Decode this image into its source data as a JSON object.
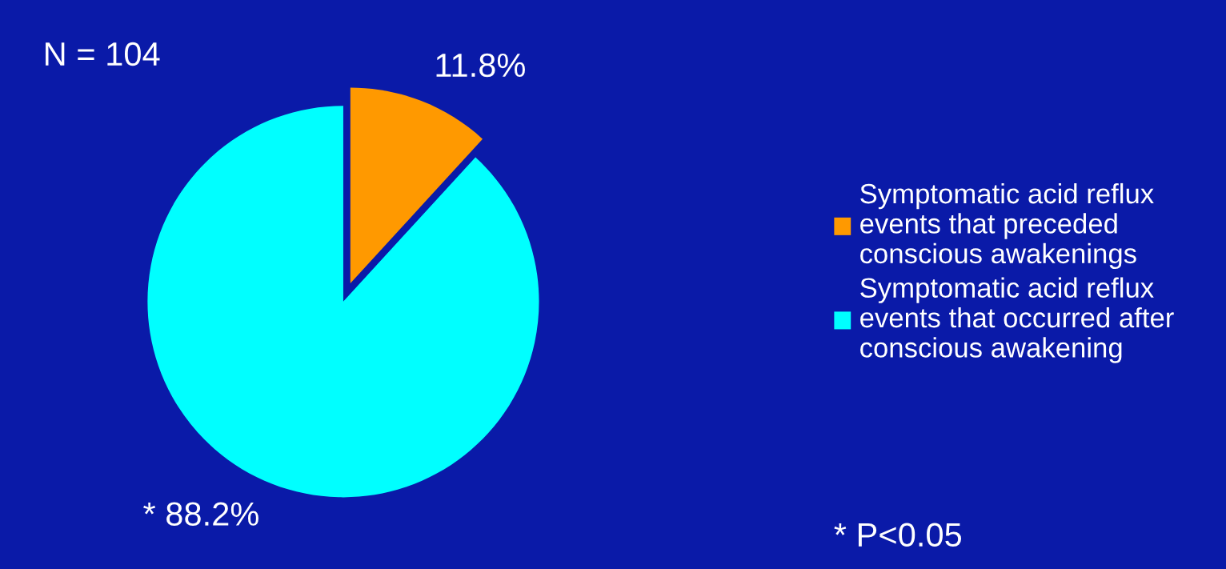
{
  "chart_data": {
    "type": "pie",
    "categories": [
      "Symptomatic acid reflux\nevents that preceded\nconscious awakenings",
      "Symptomatic acid reflux\nevents that occurred after\nconscious awakening"
    ],
    "values": [
      11.8,
      88.2
    ],
    "colors": [
      "#ff9900",
      "#00ffff"
    ],
    "value_labels": [
      "11.8%",
      "* 88.2%"
    ],
    "annotations": [
      "N = 104",
      "* P<0.05"
    ],
    "legend": "right"
  }
}
